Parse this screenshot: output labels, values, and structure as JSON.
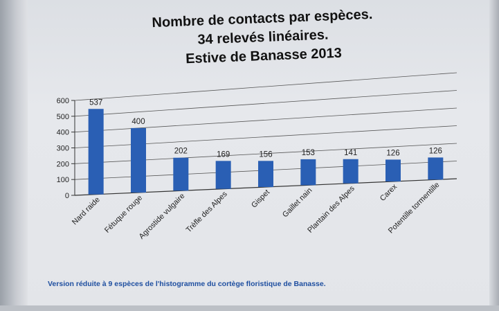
{
  "chart_data": {
    "type": "bar",
    "title_lines": [
      "Nombre de contacts par espèces.",
      "34 relevés linéaires.",
      "Estive de Banasse 2013"
    ],
    "categories": [
      "Nard raide",
      "Fétuque rouge",
      "Agrostide vulgaire",
      "Trèfle des Alpes",
      "Gispet",
      "Gaillet nain",
      "Plantain des Alpes",
      "Carex",
      "Potentille tormentille"
    ],
    "values": [
      537,
      400,
      202,
      169,
      156,
      153,
      141,
      126,
      126
    ],
    "data_labels": [
      "537",
      "400",
      "202",
      "169",
      "156",
      "153",
      "141",
      "126",
      "126"
    ],
    "y_ticks": [
      "0",
      "100",
      "200",
      "300",
      "400",
      "500",
      "600"
    ],
    "ylim": [
      0,
      600
    ],
    "grid": true,
    "bar_color": "#2a5fb4"
  },
  "caption": "Version réduite à 9 espèces de l'histogramme du cortège floristique de Banasse."
}
